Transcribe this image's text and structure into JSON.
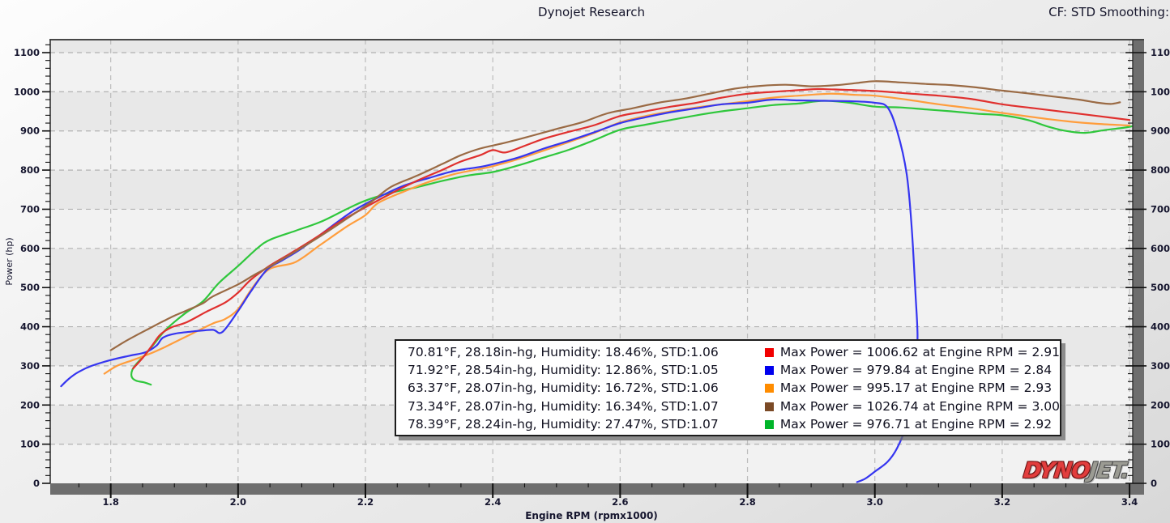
{
  "header": {
    "title": "Dynojet Research",
    "right_text": "CF: STD Smoothing:"
  },
  "logo": {
    "part1": "DYNO",
    "part2": "JET."
  },
  "chart_data": {
    "type": "line",
    "title": "Dynojet Research",
    "xlabel": "Engine RPM (rpmx1000)",
    "ylabel": "Power (hp)",
    "xlim": [
      1.705,
      3.405
    ],
    "ylim": [
      0,
      1133
    ],
    "grid": "dashed",
    "legend_position": "bottom-center",
    "x_major": [
      "1.8",
      "2.0",
      "2.2",
      "2.4",
      "2.6",
      "2.8",
      "3.0",
      "3.2",
      "3.4"
    ],
    "y_major": [
      "0",
      "100",
      "200",
      "300",
      "400",
      "500",
      "600",
      "700",
      "800",
      "900",
      "1000",
      "1100"
    ],
    "x_minor_step": 0.05,
    "y_minor_step": 20,
    "series": [
      {
        "id": "red",
        "color": "#e0302e",
        "swatch": "#f20000",
        "textured": false,
        "weather": "70.81°F, 28.18in-hg, Humidity: 18.46%, STD:1.06",
        "max_label": "Max Power = 1006.62 at Engine RPM = 2.91",
        "max_power": 1006.62,
        "max_rpm": 2.91,
        "points": [
          [
            1.835,
            293
          ],
          [
            1.85,
            320
          ],
          [
            1.865,
            352
          ],
          [
            1.878,
            380
          ],
          [
            1.895,
            398
          ],
          [
            1.92,
            412
          ],
          [
            1.95,
            438
          ],
          [
            1.98,
            462
          ],
          [
            2.0,
            487
          ],
          [
            2.02,
            520
          ],
          [
            2.05,
            556
          ],
          [
            2.08,
            585
          ],
          [
            2.12,
            625
          ],
          [
            2.16,
            668
          ],
          [
            2.2,
            705
          ],
          [
            2.24,
            740
          ],
          [
            2.28,
            772
          ],
          [
            2.32,
            800
          ],
          [
            2.35,
            822
          ],
          [
            2.38,
            838
          ],
          [
            2.4,
            851
          ],
          [
            2.42,
            845
          ],
          [
            2.45,
            862
          ],
          [
            2.48,
            880
          ],
          [
            2.52,
            898
          ],
          [
            2.56,
            915
          ],
          [
            2.6,
            938
          ],
          [
            2.64,
            950
          ],
          [
            2.68,
            962
          ],
          [
            2.72,
            972
          ],
          [
            2.76,
            985
          ],
          [
            2.8,
            995
          ],
          [
            2.84,
            1000
          ],
          [
            2.88,
            1004
          ],
          [
            2.91,
            1007
          ],
          [
            2.95,
            1005
          ],
          [
            3.0,
            1002
          ],
          [
            3.05,
            996
          ],
          [
            3.1,
            990
          ],
          [
            3.15,
            982
          ],
          [
            3.2,
            968
          ],
          [
            3.25,
            958
          ],
          [
            3.3,
            948
          ],
          [
            3.35,
            938
          ],
          [
            3.4,
            928
          ]
        ]
      },
      {
        "id": "blue",
        "color": "#3535f0",
        "swatch": "#0000ee",
        "textured": false,
        "weather": "71.92°F, 28.54in-hg, Humidity: 12.86%, STD:1.05",
        "max_label": "Max Power = 979.84 at Engine RPM = 2.84",
        "max_power": 979.84,
        "max_rpm": 2.84,
        "points": [
          [
            1.722,
            248
          ],
          [
            1.735,
            268
          ],
          [
            1.75,
            285
          ],
          [
            1.77,
            300
          ],
          [
            1.8,
            315
          ],
          [
            1.83,
            326
          ],
          [
            1.855,
            335
          ],
          [
            1.872,
            352
          ],
          [
            1.882,
            372
          ],
          [
            1.9,
            382
          ],
          [
            1.93,
            388
          ],
          [
            1.96,
            392
          ],
          [
            1.975,
            386
          ],
          [
            2.0,
            440
          ],
          [
            2.02,
            490
          ],
          [
            2.045,
            545
          ],
          [
            2.07,
            570
          ],
          [
            2.1,
            600
          ],
          [
            2.14,
            648
          ],
          [
            2.18,
            695
          ],
          [
            2.22,
            730
          ],
          [
            2.26,
            760
          ],
          [
            2.3,
            780
          ],
          [
            2.34,
            798
          ],
          [
            2.38,
            808
          ],
          [
            2.4,
            815
          ],
          [
            2.44,
            832
          ],
          [
            2.48,
            855
          ],
          [
            2.52,
            875
          ],
          [
            2.56,
            897
          ],
          [
            2.6,
            920
          ],
          [
            2.64,
            935
          ],
          [
            2.68,
            948
          ],
          [
            2.72,
            958
          ],
          [
            2.76,
            968
          ],
          [
            2.8,
            972
          ],
          [
            2.84,
            980
          ],
          [
            2.88,
            978
          ],
          [
            2.92,
            977
          ],
          [
            2.96,
            976
          ],
          [
            3.0,
            972
          ],
          [
            3.02,
            960
          ],
          [
            3.035,
            900
          ],
          [
            3.05,
            790
          ],
          [
            3.058,
            650
          ],
          [
            3.064,
            480
          ],
          [
            3.067,
            380
          ],
          [
            3.065,
            300
          ],
          [
            3.06,
            220
          ],
          [
            3.05,
            150
          ],
          [
            3.035,
            90
          ],
          [
            3.02,
            55
          ],
          [
            3.0,
            30
          ],
          [
            2.985,
            12
          ],
          [
            2.972,
            3
          ]
        ]
      },
      {
        "id": "orange",
        "color": "#ff9d3c",
        "swatch": "#ff8c00",
        "textured": false,
        "weather": "63.37°F, 28.07in-hg, Humidity: 16.72%, STD:1.06",
        "max_label": "Max Power = 995.17 at Engine RPM = 2.93",
        "max_power": 995.17,
        "max_rpm": 2.93,
        "points": [
          [
            1.79,
            280
          ],
          [
            1.81,
            300
          ],
          [
            1.835,
            315
          ],
          [
            1.86,
            330
          ],
          [
            1.885,
            348
          ],
          [
            1.91,
            368
          ],
          [
            1.935,
            388
          ],
          [
            1.96,
            408
          ],
          [
            1.98,
            420
          ],
          [
            2.0,
            445
          ],
          [
            2.025,
            505
          ],
          [
            2.05,
            548
          ],
          [
            2.09,
            565
          ],
          [
            2.13,
            610
          ],
          [
            2.17,
            655
          ],
          [
            2.2,
            685
          ],
          [
            2.22,
            716
          ],
          [
            2.26,
            745
          ],
          [
            2.3,
            770
          ],
          [
            2.34,
            790
          ],
          [
            2.38,
            803
          ],
          [
            2.4,
            810
          ],
          [
            2.44,
            828
          ],
          [
            2.48,
            850
          ],
          [
            2.52,
            872
          ],
          [
            2.56,
            895
          ],
          [
            2.6,
            922
          ],
          [
            2.64,
            938
          ],
          [
            2.68,
            950
          ],
          [
            2.72,
            960
          ],
          [
            2.76,
            968
          ],
          [
            2.8,
            976
          ],
          [
            2.84,
            985
          ],
          [
            2.88,
            990
          ],
          [
            2.93,
            995
          ],
          [
            2.97,
            992
          ],
          [
            3.0,
            990
          ],
          [
            3.05,
            980
          ],
          [
            3.1,
            968
          ],
          [
            3.15,
            958
          ],
          [
            3.2,
            946
          ],
          [
            3.25,
            935
          ],
          [
            3.3,
            925
          ],
          [
            3.35,
            918
          ],
          [
            3.4,
            914
          ]
        ]
      },
      {
        "id": "brown",
        "color": "#9a6a44",
        "swatch": "#7b4a26",
        "textured": true,
        "weather": "73.34°F, 28.07in-hg, Humidity: 16.34%, STD:1.07",
        "max_label": "Max Power = 1026.74 at Engine RPM = 3.00",
        "max_power": 1026.74,
        "max_rpm": 3.0,
        "points": [
          [
            1.8,
            340
          ],
          [
            1.82,
            360
          ],
          [
            1.84,
            378
          ],
          [
            1.86,
            395
          ],
          [
            1.88,
            412
          ],
          [
            1.9,
            428
          ],
          [
            1.92,
            442
          ],
          [
            1.945,
            460
          ],
          [
            1.96,
            477
          ],
          [
            2.0,
            508
          ],
          [
            2.025,
            532
          ],
          [
            2.05,
            554
          ],
          [
            2.09,
            592
          ],
          [
            2.13,
            632
          ],
          [
            2.17,
            675
          ],
          [
            2.21,
            720
          ],
          [
            2.24,
            757
          ],
          [
            2.28,
            785
          ],
          [
            2.32,
            815
          ],
          [
            2.35,
            838
          ],
          [
            2.38,
            855
          ],
          [
            2.42,
            870
          ],
          [
            2.46,
            887
          ],
          [
            2.5,
            905
          ],
          [
            2.54,
            922
          ],
          [
            2.58,
            945
          ],
          [
            2.62,
            958
          ],
          [
            2.66,
            972
          ],
          [
            2.7,
            982
          ],
          [
            2.74,
            995
          ],
          [
            2.78,
            1008
          ],
          [
            2.82,
            1015
          ],
          [
            2.86,
            1018
          ],
          [
            2.9,
            1014
          ],
          [
            2.94,
            1017
          ],
          [
            2.97,
            1022
          ],
          [
            3.0,
            1027
          ],
          [
            3.04,
            1024
          ],
          [
            3.08,
            1020
          ],
          [
            3.12,
            1017
          ],
          [
            3.16,
            1011
          ],
          [
            3.2,
            1003
          ],
          [
            3.24,
            996
          ],
          [
            3.28,
            988
          ],
          [
            3.32,
            980
          ],
          [
            3.35,
            972
          ],
          [
            3.37,
            969
          ],
          [
            3.385,
            973
          ]
        ]
      },
      {
        "id": "green",
        "color": "#2fc73c",
        "swatch": "#00b52a",
        "textured": false,
        "weather": "78.39°F, 28.24in-hg, Humidity: 27.47%, STD:1.07",
        "max_label": "Max Power = 976.71 at Engine RPM = 2.92",
        "max_power": 976.71,
        "max_rpm": 2.92,
        "points": [
          [
            1.863,
            252
          ],
          [
            1.852,
            258
          ],
          [
            1.84,
            262
          ],
          [
            1.833,
            272
          ],
          [
            1.834,
            290
          ],
          [
            1.842,
            308
          ],
          [
            1.855,
            330
          ],
          [
            1.87,
            360
          ],
          [
            1.885,
            390
          ],
          [
            1.9,
            412
          ],
          [
            1.92,
            438
          ],
          [
            1.945,
            465
          ],
          [
            1.97,
            512
          ],
          [
            2.0,
            555
          ],
          [
            2.03,
            600
          ],
          [
            2.05,
            622
          ],
          [
            2.09,
            645
          ],
          [
            2.13,
            668
          ],
          [
            2.17,
            700
          ],
          [
            2.2,
            722
          ],
          [
            2.24,
            742
          ],
          [
            2.28,
            756
          ],
          [
            2.32,
            772
          ],
          [
            2.36,
            786
          ],
          [
            2.4,
            795
          ],
          [
            2.44,
            812
          ],
          [
            2.48,
            832
          ],
          [
            2.52,
            852
          ],
          [
            2.56,
            877
          ],
          [
            2.6,
            903
          ],
          [
            2.64,
            916
          ],
          [
            2.68,
            928
          ],
          [
            2.72,
            940
          ],
          [
            2.76,
            950
          ],
          [
            2.8,
            958
          ],
          [
            2.84,
            966
          ],
          [
            2.88,
            970
          ],
          [
            2.92,
            977
          ],
          [
            2.96,
            972
          ],
          [
            3.0,
            962
          ],
          [
            3.04,
            960
          ],
          [
            3.08,
            955
          ],
          [
            3.12,
            950
          ],
          [
            3.16,
            944
          ],
          [
            3.2,
            940
          ],
          [
            3.24,
            928
          ],
          [
            3.27,
            912
          ],
          [
            3.3,
            900
          ],
          [
            3.33,
            895
          ],
          [
            3.36,
            902
          ],
          [
            3.39,
            908
          ],
          [
            3.405,
            912
          ]
        ]
      }
    ]
  }
}
